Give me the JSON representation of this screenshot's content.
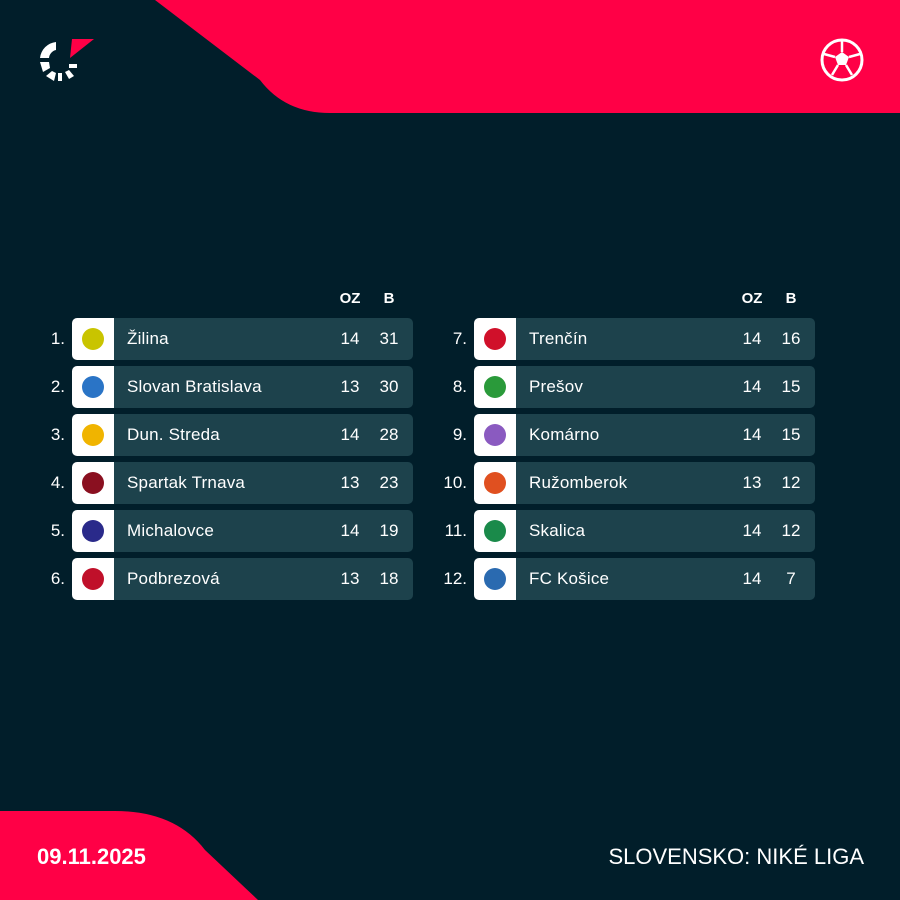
{
  "header": {
    "brand_icon": "flashscore-logo-icon",
    "sport_icon": "football-icon"
  },
  "columns": {
    "played": "OZ",
    "points": "B"
  },
  "colors": {
    "background": "#011e2a",
    "accent": "#ff0046",
    "row": "#1d424c"
  },
  "standings": [
    {
      "rank": "1.",
      "team": "Žilina",
      "played": "14",
      "points": "31",
      "crest": "#c9c400"
    },
    {
      "rank": "2.",
      "team": "Slovan Bratislava",
      "played": "13",
      "points": "30",
      "crest": "#2a74c6"
    },
    {
      "rank": "3.",
      "team": "Dun. Streda",
      "played": "14",
      "points": "28",
      "crest": "#f0b400"
    },
    {
      "rank": "4.",
      "team": "Spartak Trnava",
      "played": "13",
      "points": "23",
      "crest": "#8a1020"
    },
    {
      "rank": "5.",
      "team": "Michalovce",
      "played": "14",
      "points": "19",
      "crest": "#2a2a8a"
    },
    {
      "rank": "6.",
      "team": "Podbrezová",
      "played": "13",
      "points": "18",
      "crest": "#c0102a"
    },
    {
      "rank": "7.",
      "team": "Trenčín",
      "played": "14",
      "points": "16",
      "crest": "#d0102a"
    },
    {
      "rank": "8.",
      "team": "Prešov",
      "played": "14",
      "points": "15",
      "crest": "#2a9a3a"
    },
    {
      "rank": "9.",
      "team": "Komárno",
      "played": "14",
      "points": "15",
      "crest": "#8a5ac0"
    },
    {
      "rank": "10.",
      "team": "Ružomberok",
      "played": "13",
      "points": "12",
      "crest": "#e05020"
    },
    {
      "rank": "11.",
      "team": "Skalica",
      "played": "14",
      "points": "12",
      "crest": "#1a8a4a"
    },
    {
      "rank": "12.",
      "team": "FC Košice",
      "played": "14",
      "points": "7",
      "crest": "#2a6ab0"
    }
  ],
  "footer": {
    "date": "09.11.2025",
    "league": "SLOVENSKO: NIKÉ LIGA"
  }
}
